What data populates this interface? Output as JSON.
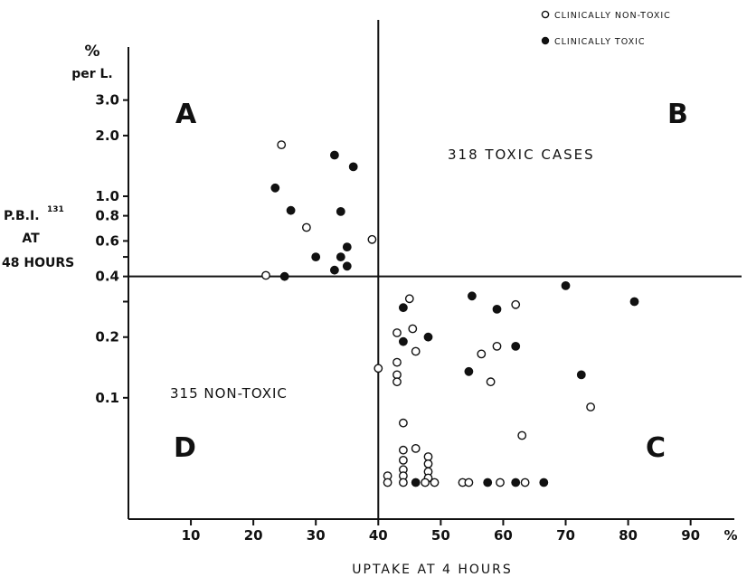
{
  "chart_data": {
    "type": "scatter",
    "xlabel": "UPTAKE AT 4 HOURS",
    "x_unit": "%",
    "ylabel": [
      "P.B.I.",
      "131",
      "AT",
      "48 HOURS"
    ],
    "y_unit": [
      "%",
      "per L."
    ],
    "x_ticks": [
      10,
      20,
      30,
      40,
      50,
      60,
      70,
      80,
      90
    ],
    "y_ticks": [
      "0.1",
      "0.2",
      "0.4",
      "0.6",
      "0.8",
      "1.0",
      "2.0",
      "3.0"
    ],
    "y_scale": "log",
    "xlim": [
      0,
      97
    ],
    "ylim": [
      0.025,
      5.5
    ],
    "threshold_x": 40,
    "threshold_y": 0.4,
    "quadrants": {
      "A": "A",
      "B": "B",
      "C": "C",
      "D": "D"
    },
    "annotations": {
      "toxic": "318 TOXIC CASES",
      "nontoxic": "315 NON-TOXIC"
    },
    "legend": {
      "position": "top-right",
      "open": "CLINICALLY NON-TOXIC",
      "filled": "CLINICALLY TOXIC"
    },
    "series": [
      {
        "name": "CLINICALLY NON-TOXIC",
        "marker": "open",
        "points": [
          [
            24.5,
            1.8
          ],
          [
            28.5,
            0.7
          ],
          [
            39,
            0.61
          ],
          [
            22,
            0.405
          ],
          [
            45,
            0.31
          ],
          [
            62,
            0.29
          ],
          [
            43,
            0.21
          ],
          [
            45.5,
            0.22
          ],
          [
            46,
            0.17
          ],
          [
            43,
            0.15
          ],
          [
            56.5,
            0.165
          ],
          [
            59,
            0.18
          ],
          [
            43,
            0.13
          ],
          [
            43,
            0.12
          ],
          [
            40,
            0.14
          ],
          [
            58,
            0.12
          ],
          [
            74,
            0.09
          ],
          [
            63,
            0.065
          ],
          [
            44,
            0.075
          ],
          [
            44,
            0.055
          ],
          [
            46,
            0.056
          ],
          [
            48,
            0.051
          ],
          [
            44,
            0.049
          ],
          [
            48,
            0.047
          ],
          [
            44,
            0.044
          ],
          [
            48,
            0.043
          ],
          [
            41.5,
            0.041
          ],
          [
            44,
            0.041
          ],
          [
            48,
            0.04
          ],
          [
            41.5,
            0.038
          ],
          [
            44,
            0.038
          ],
          [
            47.5,
            0.038
          ],
          [
            49,
            0.038
          ],
          [
            53.5,
            0.038
          ],
          [
            54.5,
            0.038
          ],
          [
            59.5,
            0.038
          ],
          [
            63.5,
            0.038
          ]
        ]
      },
      {
        "name": "CLINICALLY TOXIC",
        "marker": "filled",
        "points": [
          [
            33,
            1.6
          ],
          [
            36,
            1.4
          ],
          [
            23.5,
            1.1
          ],
          [
            26,
            0.85
          ],
          [
            34,
            0.84
          ],
          [
            35,
            0.56
          ],
          [
            30,
            0.5
          ],
          [
            34,
            0.5
          ],
          [
            35,
            0.45
          ],
          [
            33,
            0.43
          ],
          [
            25,
            0.4
          ],
          [
            70,
            0.36
          ],
          [
            55,
            0.32
          ],
          [
            81,
            0.3
          ],
          [
            44,
            0.28
          ],
          [
            59,
            0.275
          ],
          [
            48,
            0.2
          ],
          [
            44,
            0.19
          ],
          [
            62,
            0.18
          ],
          [
            54.5,
            0.135
          ],
          [
            72.5,
            0.13
          ],
          [
            46,
            0.038
          ],
          [
            57.5,
            0.038
          ],
          [
            62,
            0.038
          ],
          [
            66.5,
            0.038
          ]
        ]
      }
    ]
  }
}
